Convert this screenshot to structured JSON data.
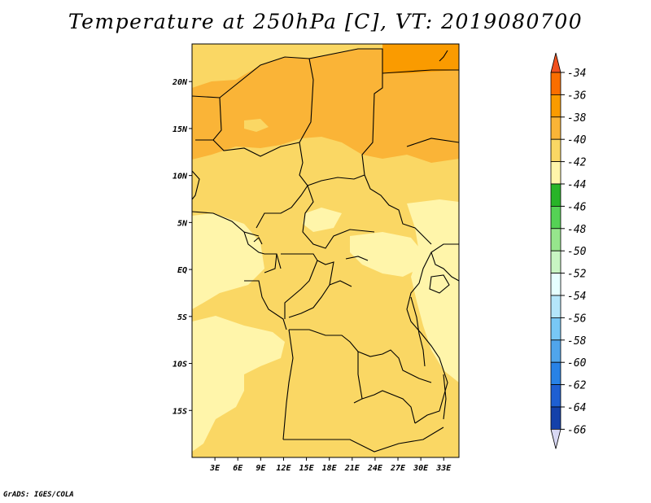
{
  "title": "Temperature at 250hPa [C], VT: 2019080700",
  "credit": "GrADS: IGES/COLA",
  "map": {
    "lon_labels": [
      "3E",
      "6E",
      "9E",
      "12E",
      "15E",
      "18E",
      "21E",
      "24E",
      "27E",
      "30E",
      "33E"
    ],
    "lat_labels": [
      "20N",
      "15N",
      "10N",
      "5N",
      "EQ",
      "5S",
      "10S",
      "15S"
    ],
    "lon_range": [
      0,
      35
    ],
    "lat_range": [
      -20,
      24
    ],
    "boundary_color": "#000000"
  },
  "colorbar": {
    "labels": [
      "-34",
      "-36",
      "-38",
      "-40",
      "-42",
      "-44",
      "-46",
      "-48",
      "-50",
      "-52",
      "-54",
      "-56",
      "-58",
      "-60",
      "-62",
      "-64",
      "-66"
    ],
    "top_arrow_color": "#f0501e",
    "bottom_arrow_color": "#d8d8f4",
    "colors": [
      "#fa6e00",
      "#fa9b00",
      "#fab437",
      "#fad764",
      "#fff5aa",
      "#28b428",
      "#55d255",
      "#96e68c",
      "#c8f5c3",
      "#e6ffff",
      "#b4e6fa",
      "#78c8f5",
      "#50a5eb",
      "#2882e6",
      "#1e5fd2",
      "#1441aa",
      "#0a1a78"
    ]
  },
  "legend_classes": [
    {
      "name": "-34 to -36",
      "color": "#fa6e00"
    },
    {
      "name": "-36 to -38",
      "color": "#fa9b00"
    },
    {
      "name": "-38 to -40",
      "color": "#fab437"
    },
    {
      "name": "-40 to -42",
      "color": "#fad764"
    },
    {
      "name": "-42 to -44",
      "color": "#fff5aa"
    }
  ]
}
